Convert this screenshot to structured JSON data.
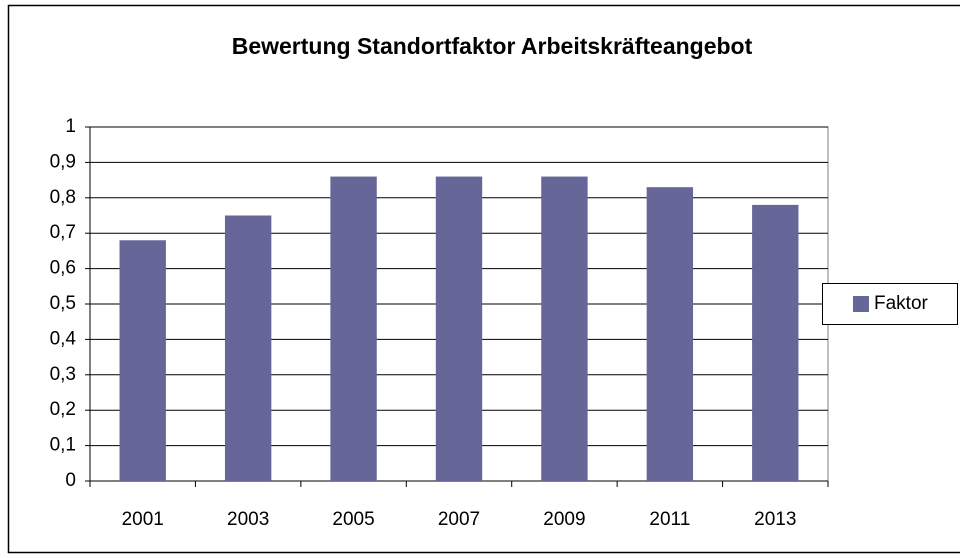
{
  "chart_data": {
    "type": "bar",
    "title": "Bewertung Standortfaktor Arbeitskräfteangebot",
    "categories": [
      "2001",
      "2003",
      "2005",
      "2007",
      "2009",
      "2011",
      "2013"
    ],
    "series": [
      {
        "name": "Faktor",
        "color": "#666699",
        "values": [
          0.68,
          0.75,
          0.86,
          0.86,
          0.86,
          0.83,
          0.78
        ]
      }
    ],
    "ylim": [
      0,
      1
    ],
    "yticks": [
      0,
      {
        "value": 0.1,
        "label": "0,1"
      },
      {
        "value": 0.2,
        "label": "0,2"
      },
      {
        "value": 0.3,
        "label": "0,3"
      },
      {
        "value": 0.4,
        "label": "0,4"
      },
      {
        "value": 0.5,
        "label": "0,5"
      },
      {
        "value": 0.6,
        "label": "0,6"
      },
      {
        "value": 0.7,
        "label": "0,7"
      },
      {
        "value": 0.8,
        "label": "0,8"
      },
      {
        "value": 0.9,
        "label": "0,9"
      },
      1
    ],
    "grid": true,
    "legend": "right"
  }
}
